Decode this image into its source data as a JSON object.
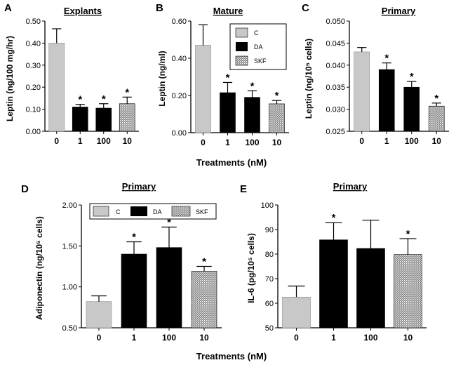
{
  "colors": {
    "control": "#c8c8c8",
    "da": "#000000",
    "skf_base": "#7a7a7a",
    "skf_dot": "#ffffff"
  },
  "legend": [
    {
      "key": "control",
      "label": "C"
    },
    {
      "key": "da",
      "label": "DA"
    },
    {
      "key": "skf",
      "label": "SKF"
    }
  ],
  "shared_xlabels": [
    "Treatments (nM)",
    "Treatments (nM)"
  ],
  "chart_data": [
    {
      "panel": "A",
      "title": "Explants",
      "type": "bar",
      "categories": [
        "0",
        "1",
        "100",
        "10"
      ],
      "series_keys": [
        "control",
        "da",
        "da",
        "skf"
      ],
      "values": [
        0.4,
        0.11,
        0.105,
        0.125
      ],
      "errors": [
        0.065,
        0.012,
        0.02,
        0.03
      ],
      "significant": [
        false,
        true,
        true,
        true
      ],
      "ylabel": "Leptin (ng/100 mg/hr)",
      "ylim": [
        0,
        0.5
      ],
      "yticks": [
        "0.00",
        "0.10",
        "0.20",
        "0.30",
        "0.40",
        "0.50"
      ]
    },
    {
      "panel": "B",
      "title": "Mature",
      "type": "bar",
      "categories": [
        "0",
        "1",
        "100",
        "10"
      ],
      "series_keys": [
        "control",
        "da",
        "da",
        "skf"
      ],
      "values": [
        0.47,
        0.215,
        0.19,
        0.155
      ],
      "errors": [
        0.11,
        0.055,
        0.035,
        0.018
      ],
      "significant": [
        false,
        true,
        true,
        true
      ],
      "ylabel": "Leptin (ng/ml)",
      "ylim": [
        0,
        0.6
      ],
      "yticks": [
        "0.00",
        "0.20",
        "0.40",
        "0.60"
      ]
    },
    {
      "panel": "C",
      "title": "Primary",
      "type": "bar",
      "categories": [
        "0",
        "1",
        "100",
        "10"
      ],
      "series_keys": [
        "control",
        "da",
        "da",
        "skf"
      ],
      "values": [
        0.043,
        0.039,
        0.035,
        0.0307
      ],
      "errors": [
        0.001,
        0.0015,
        0.0013,
        0.0007
      ],
      "significant": [
        false,
        true,
        true,
        true
      ],
      "ylabel": "Leptin (ng/10⁵ cells)",
      "ylim": [
        0.025,
        0.05
      ],
      "yticks": [
        "0.025",
        "0.030",
        "0.035",
        "0.040",
        "0.045",
        "0.050"
      ]
    },
    {
      "panel": "D",
      "title": "Primary",
      "type": "bar",
      "categories": [
        "0",
        "1",
        "100",
        "10"
      ],
      "series_keys": [
        "control",
        "da",
        "da",
        "skf"
      ],
      "values": [
        0.82,
        1.4,
        1.48,
        1.19
      ],
      "errors": [
        0.07,
        0.15,
        0.25,
        0.06
      ],
      "significant": [
        false,
        true,
        true,
        true
      ],
      "ylabel": "Adiponectin (ng/10⁵ cells)",
      "ylim": [
        0.5,
        2.0
      ],
      "yticks": [
        "0.50",
        "1.00",
        "1.50",
        "2.00"
      ]
    },
    {
      "panel": "E",
      "title": "Primary",
      "type": "bar",
      "categories": [
        "0",
        "1",
        "100",
        "10"
      ],
      "series_keys": [
        "control",
        "da",
        "da",
        "skf"
      ],
      "values": [
        62.5,
        85.8,
        82.3,
        79.8
      ],
      "errors": [
        4.5,
        7.0,
        11.5,
        6.5
      ],
      "significant": [
        false,
        true,
        false,
        true
      ],
      "ylabel": "IL-6  (pg/10⁵ cells)",
      "ylim": [
        50,
        100
      ],
      "yticks": [
        "50",
        "60",
        "70",
        "80",
        "90",
        "100"
      ]
    }
  ]
}
